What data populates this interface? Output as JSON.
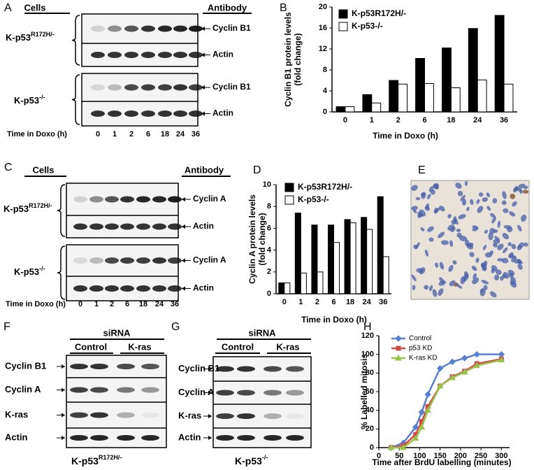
{
  "chart_data": [
    {
      "type": "bar",
      "panel_label": "B",
      "categories": [
        0,
        1,
        2,
        6,
        18,
        24,
        36
      ],
      "series": [
        {
          "name": "K-p53R172H/-",
          "color": "#000000",
          "values": [
            1,
            3.3,
            6,
            10.2,
            12.2,
            15.9,
            18.4
          ]
        },
        {
          "name": "K-p53-/-",
          "color": "#ffffff",
          "values": [
            1,
            1.7,
            5.3,
            5.4,
            4.6,
            6.1,
            5.3
          ]
        }
      ],
      "ylim": [
        0,
        20
      ],
      "yticks": [
        0,
        4,
        8,
        12,
        16,
        20
      ],
      "xlabel": "Time in Doxo (h)",
      "ylabel": [
        "Cyclin B1 protein levels",
        "(fold change)"
      ],
      "legend": "upper left"
    },
    {
      "type": "bar",
      "panel_label": "D",
      "categories": [
        0,
        1,
        2,
        6,
        18,
        24,
        36
      ],
      "series": [
        {
          "name": "K-p53R172H/-",
          "color": "#000000",
          "values": [
            1,
            7.4,
            6.3,
            6.3,
            6.8,
            7,
            8.9
          ]
        },
        {
          "name": "K-p53-/-",
          "color": "#ffffff",
          "values": [
            1,
            1.9,
            2,
            4.7,
            6.5,
            5.9,
            3.4
          ]
        }
      ],
      "ylim": [
        0,
        10
      ],
      "yticks": [
        0,
        2,
        4,
        6,
        8,
        10
      ],
      "xlabel": "Time in Doxo (h)",
      "ylabel": [
        "Cyclin A protein levels",
        "(fold change)"
      ],
      "legend": "upper left"
    },
    {
      "type": "line",
      "panel_label": "H",
      "x": [
        30,
        60,
        90,
        105,
        120,
        150,
        180,
        210,
        240,
        300
      ],
      "series": [
        {
          "name": "Control",
          "color": "#5b7fd0",
          "marker": "diamond",
          "values": [
            0,
            5,
            22,
            38,
            57,
            85,
            92,
            96,
            100,
            100
          ]
        },
        {
          "name": "p53 KD",
          "color": "#d04a4a",
          "marker": "square",
          "values": [
            0,
            2,
            14,
            28,
            44,
            66,
            76,
            82,
            90,
            95
          ]
        },
        {
          "name": "K-ras KD",
          "color": "#99c24a",
          "marker": "triangle",
          "values": [
            0,
            0,
            10,
            22,
            40,
            66,
            75,
            81,
            88,
            94
          ]
        }
      ],
      "xlim": [
        0,
        320
      ],
      "xticks": [
        0,
        50,
        100,
        150,
        200,
        250,
        300
      ],
      "ylim": [
        0,
        120
      ],
      "yticks": [
        0,
        20,
        40,
        60,
        80,
        100,
        120
      ],
      "xlabel": "Time after BrdU labelling (minutes)",
      "ylabel": [
        "% Labelled mitosis"
      ],
      "legend": "upper left"
    }
  ],
  "panels": {
    "A": {
      "letter": "A",
      "cells": "Cells",
      "antibody": "Antibody",
      "groups": [
        {
          "label": {
            "text": "K-p53",
            "sup": "R172H/-"
          },
          "rows": [
            "Cyclin B1",
            "Actin"
          ]
        },
        {
          "label": {
            "text": "K-p53",
            "sup": "-/-"
          },
          "rows": [
            "Cyclin B1",
            "Actin"
          ]
        }
      ],
      "time_label": "Time in Doxo (h)",
      "lanes": [
        0,
        1,
        2,
        6,
        18,
        24,
        36
      ]
    },
    "C": {
      "letter": "C",
      "cells": "Cells",
      "antibody": "Antibody",
      "groups": [
        {
          "label": {
            "text": "K-p53",
            "sup": "R172H/-"
          },
          "rows": [
            "Cyclin A",
            "Actin"
          ]
        },
        {
          "label": {
            "text": "K-p53",
            "sup": "-/-"
          },
          "rows": [
            "Cyclin A",
            "Actin"
          ]
        }
      ],
      "time_label": "Time in Doxo (h)",
      "lanes": [
        0,
        1,
        2,
        6,
        18,
        24,
        36
      ]
    },
    "E": {
      "letter": "E"
    },
    "F": {
      "letter": "F",
      "sirna": "siRNA",
      "conditions": [
        "Control",
        "K-ras"
      ],
      "rows": [
        "Cyclin B1",
        "Cyclin A",
        "K-ras",
        "Actin"
      ],
      "cell_line": {
        "text": "K-p53",
        "sup": "R172H/-"
      }
    },
    "G": {
      "letter": "G",
      "sirna": "siRNA",
      "conditions": [
        "Control",
        "K-ras"
      ],
      "rows": [
        "Cyclin B1",
        "Cyclin A",
        "K-ras",
        "Actin"
      ],
      "cell_line": {
        "text": "K-p53",
        "sup": "-/-"
      }
    }
  }
}
